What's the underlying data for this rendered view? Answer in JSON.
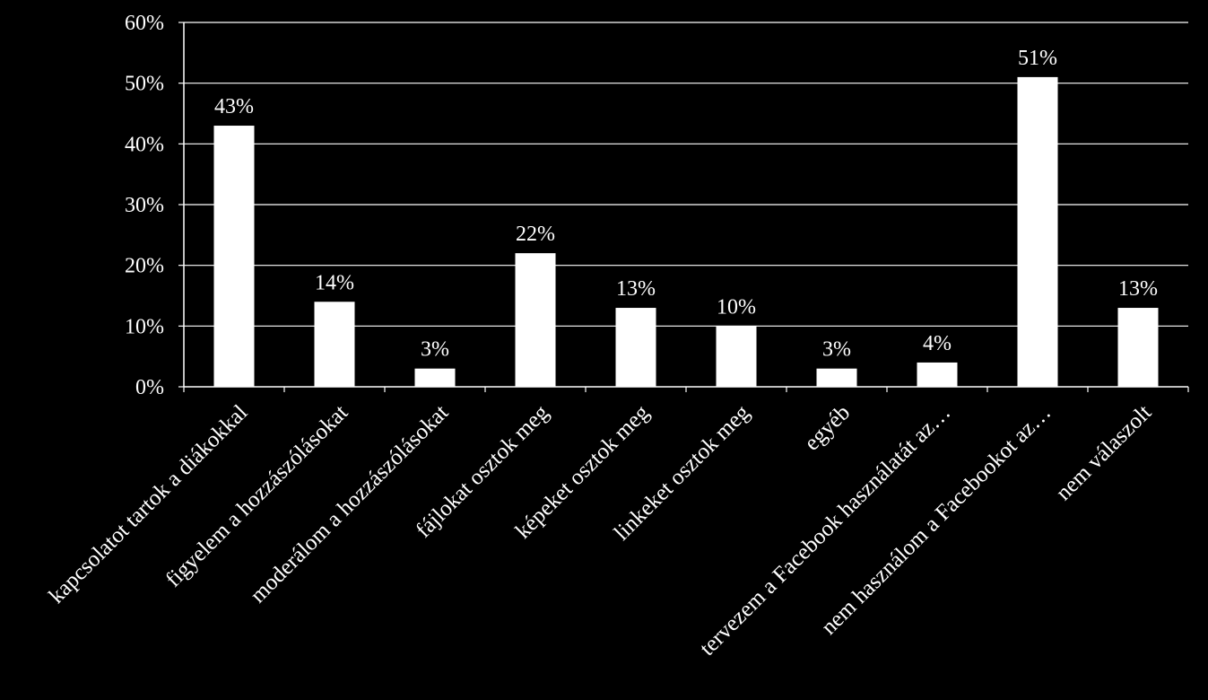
{
  "colors": {
    "background": "#000000",
    "bar": "#ffffff",
    "gridline": "#ffffff",
    "text": "#ffffff"
  },
  "chart_data": {
    "type": "bar",
    "title": "",
    "xlabel": "",
    "ylabel": "",
    "ylim": [
      0,
      60
    ],
    "yticks": [
      "0%",
      "10%",
      "20%",
      "30%",
      "40%",
      "50%",
      "60%"
    ],
    "grid": true,
    "legend": "none",
    "categories": [
      "kapcsolatot tartok a diákokkal",
      "figyelem a hozzászólásokat",
      "moderálom a hozzászólásokat",
      "fájlokat osztok meg",
      "képeket osztok meg",
      "linkeket osztok meg",
      "egyéb",
      "tervezem a Facebook használatát az…",
      "nem használom a Facebookot az…",
      "nem válaszolt"
    ],
    "values": [
      43,
      14,
      3,
      22,
      13,
      10,
      3,
      4,
      51,
      13
    ],
    "data_labels": [
      "43%",
      "14%",
      "3%",
      "22%",
      "13%",
      "10%",
      "3%",
      "4%",
      "51%",
      "13%"
    ]
  }
}
